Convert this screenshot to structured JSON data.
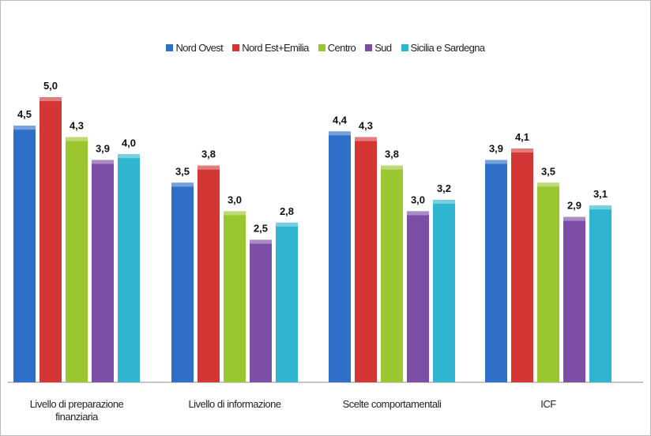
{
  "chart_data": {
    "type": "bar",
    "title": "",
    "xlabel": "",
    "ylabel": "",
    "ylim": [
      0,
      5.5
    ],
    "grid": false,
    "legend_position": "top",
    "categories": [
      "Livello di preparazione finanziaria",
      "Livello di informazione",
      "Scelte comportamentali",
      "ICF"
    ],
    "category_lines": [
      [
        "Livello di preparazione",
        "finanziaria"
      ],
      [
        "Livello di informazione"
      ],
      [
        "Scelte comportamentali"
      ],
      [
        "ICF"
      ]
    ],
    "series": [
      {
        "name": "Nord Ovest",
        "color": "#2f6fc7",
        "values": [
          4.5,
          3.5,
          4.4,
          3.9
        ],
        "labels": [
          "4,5",
          "3,5",
          "4,4",
          "3,9"
        ]
      },
      {
        "name": "Nord Est+Emilia",
        "color": "#d43636",
        "values": [
          5.0,
          3.8,
          4.3,
          4.1
        ],
        "labels": [
          "5,0",
          "3,8",
          "4,3",
          "4,1"
        ]
      },
      {
        "name": "Centro",
        "color": "#9ac62f",
        "values": [
          4.3,
          3.0,
          3.8,
          3.5
        ],
        "labels": [
          "4,3",
          "3,0",
          "3,8",
          "3,5"
        ]
      },
      {
        "name": "Sud",
        "color": "#7d4ea6",
        "values": [
          3.9,
          2.5,
          3.0,
          2.9
        ],
        "labels": [
          "3,9",
          "2,5",
          "3,0",
          "2,9"
        ]
      },
      {
        "name": "Sicilia e Sardegna",
        "color": "#2fb5cf",
        "values": [
          4.0,
          2.8,
          3.2,
          3.1
        ],
        "labels": [
          "4,0",
          "2,8",
          "3,2",
          "3,1"
        ]
      }
    ]
  }
}
